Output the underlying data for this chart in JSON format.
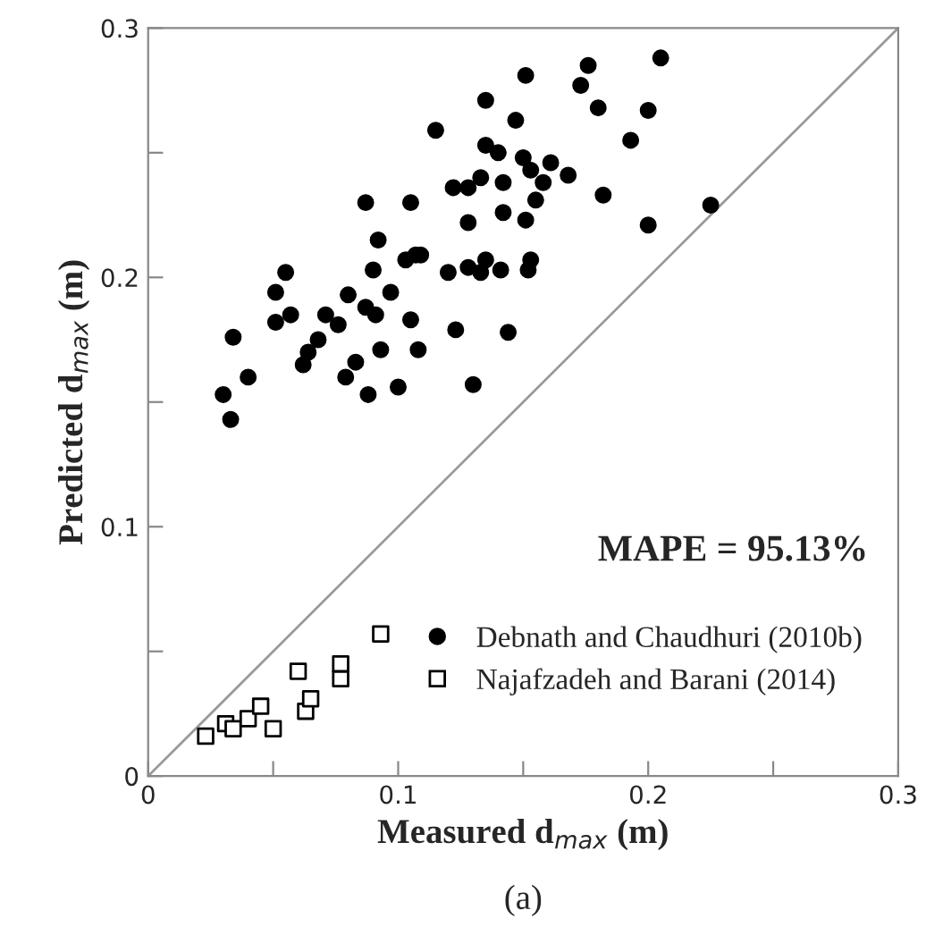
{
  "chart_data": {
    "type": "scatter",
    "xlabel": "Measured d$_{max}$ (m)",
    "ylabel": "Predicted d$_{max}$ (m)",
    "xlim": [
      0,
      0.3
    ],
    "ylim": [
      0,
      0.3
    ],
    "xticks": [
      0,
      {
        "value": 0.05,
        "label": null
      },
      0.1,
      {
        "value": 0.15,
        "label": null
      },
      0.2,
      {
        "value": 0.25,
        "label": null
      },
      0.3
    ],
    "yticks": [
      0,
      {
        "value": 0.05,
        "label": null
      },
      0.1,
      {
        "value": 0.15,
        "label": null
      },
      0.2,
      {
        "value": 0.25,
        "label": null
      },
      0.3
    ],
    "grid": false,
    "legend": "bottom right",
    "annotations": [
      "MAPE = 95.13%",
      "(a)"
    ],
    "series": [
      {
        "type": "line",
        "color": "#999999",
        "marker": "none",
        "x": [
          0,
          0.3
        ],
        "values": [
          0,
          0.3
        ]
      },
      {
        "name": "Debnath and Chaudhuri (2010b)",
        "color": "#000000",
        "marker": "circle",
        "x": [
          0.151,
          0.135,
          0.147,
          0.115,
          0.135,
          0.14,
          0.15,
          0.153,
          0.133,
          0.142,
          0.122,
          0.128,
          0.087,
          0.105,
          0.128,
          0.142,
          0.151,
          0.092,
          0.103,
          0.107,
          0.109,
          0.055,
          0.09,
          0.12,
          0.128,
          0.133,
          0.135,
          0.141,
          0.051,
          0.08,
          0.097,
          0.057,
          0.051,
          0.071,
          0.076,
          0.087,
          0.091,
          0.105,
          0.123,
          0.144,
          0.034,
          0.068,
          0.064,
          0.062,
          0.093,
          0.108,
          0.04,
          0.079,
          0.083,
          0.03,
          0.088,
          0.1,
          0.13,
          0.033,
          0.205,
          0.176,
          0.173,
          0.18,
          0.2,
          0.193,
          0.161,
          0.168,
          0.158,
          0.155,
          0.182,
          0.2,
          0.225,
          0.153,
          0.152
        ],
        "values": [
          0.281,
          0.271,
          0.263,
          0.259,
          0.253,
          0.25,
          0.248,
          0.243,
          0.24,
          0.238,
          0.236,
          0.236,
          0.23,
          0.23,
          0.222,
          0.226,
          0.223,
          0.215,
          0.207,
          0.209,
          0.209,
          0.202,
          0.203,
          0.202,
          0.204,
          0.202,
          0.207,
          0.203,
          0.194,
          0.193,
          0.194,
          0.185,
          0.182,
          0.185,
          0.181,
          0.188,
          0.185,
          0.183,
          0.179,
          0.178,
          0.176,
          0.175,
          0.17,
          0.165,
          0.171,
          0.171,
          0.16,
          0.16,
          0.166,
          0.153,
          0.153,
          0.156,
          0.157,
          0.143,
          0.288,
          0.285,
          0.277,
          0.268,
          0.267,
          0.255,
          0.246,
          0.241,
          0.238,
          0.231,
          0.233,
          0.221,
          0.229,
          0.207,
          0.203
        ]
      },
      {
        "name": "Najafzadeh and Barani (2014)",
        "color": "#000000",
        "marker": "square",
        "x": [
          0.023,
          0.031,
          0.034,
          0.04,
          0.045,
          0.05,
          0.06,
          0.063,
          0.065,
          0.077,
          0.077,
          0.093
        ],
        "values": [
          0.016,
          0.021,
          0.019,
          0.023,
          0.028,
          0.019,
          0.042,
          0.026,
          0.031,
          0.039,
          0.045,
          0.057
        ]
      }
    ]
  }
}
